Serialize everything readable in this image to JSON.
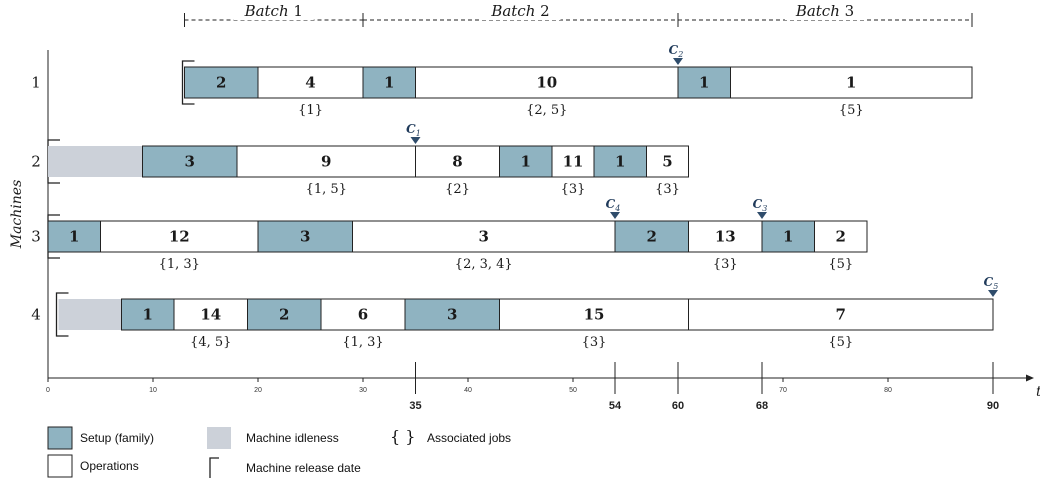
{
  "colors": {
    "setup": "#8fb3c1",
    "idle": "#ccd1d9",
    "op": "#ffffff",
    "stroke": "#222222",
    "marker": "#2f4c6b"
  },
  "batches": [
    {
      "label": "Batch",
      "num": "1",
      "start": 13,
      "end": 30
    },
    {
      "label": "Batch",
      "num": "2",
      "start": 30,
      "end": 60
    },
    {
      "label": "Batch",
      "num": "3",
      "start": 60,
      "end": 88
    }
  ],
  "axis": {
    "ylabel": "Machines",
    "xlabel": "t",
    "ticks": [
      0,
      10,
      20,
      30,
      40,
      50,
      60,
      70,
      80,
      90
    ],
    "minor_labels": [
      "0",
      "10",
      "20",
      "30",
      "40",
      "50",
      "",
      "70",
      "80",
      ""
    ],
    "major_ticks": [
      35,
      54,
      60,
      68,
      90
    ],
    "major_labels": [
      "35",
      "54",
      "60",
      "68",
      "90"
    ]
  },
  "machines": [
    {
      "label": "1",
      "release": 13,
      "blocks": [
        {
          "type": "setup",
          "start": 13,
          "end": 20,
          "text": "2"
        },
        {
          "type": "op",
          "start": 20,
          "end": 30,
          "text": "4"
        },
        {
          "type": "setup",
          "start": 30,
          "end": 35,
          "text": "1"
        },
        {
          "type": "op",
          "start": 35,
          "end": 60,
          "text": "10"
        },
        {
          "type": "setup",
          "start": 60,
          "end": 65,
          "text": "1"
        },
        {
          "type": "op",
          "start": 65,
          "end": 88,
          "text": "1"
        }
      ],
      "jobs": [
        {
          "at": 25,
          "text": "{1}"
        },
        {
          "at": 47.5,
          "text": "{2, 5}"
        },
        {
          "at": 76.5,
          "text": "{5}"
        }
      ]
    },
    {
      "label": "2",
      "release": 0,
      "blocks": [
        {
          "type": "idle",
          "start": 0,
          "end": 9,
          "text": ""
        },
        {
          "type": "setup",
          "start": 9,
          "end": 18,
          "text": "3"
        },
        {
          "type": "op",
          "start": 18,
          "end": 35,
          "text": "9"
        },
        {
          "type": "op",
          "start": 35,
          "end": 43,
          "text": "8"
        },
        {
          "type": "setup",
          "start": 43,
          "end": 48,
          "text": "1"
        },
        {
          "type": "op",
          "start": 48,
          "end": 52,
          "text": "11"
        },
        {
          "type": "setup",
          "start": 52,
          "end": 57,
          "text": "1"
        },
        {
          "type": "op",
          "start": 57,
          "end": 61,
          "text": "5"
        }
      ],
      "jobs": [
        {
          "at": 26.5,
          "text": "{1, 5}"
        },
        {
          "at": 39,
          "text": "{2}"
        },
        {
          "at": 50,
          "text": "{3}"
        },
        {
          "at": 59,
          "text": "{3}"
        }
      ]
    },
    {
      "label": "3",
      "release": 0,
      "blocks": [
        {
          "type": "setup",
          "start": 0,
          "end": 5,
          "text": "1"
        },
        {
          "type": "op",
          "start": 5,
          "end": 20,
          "text": "12"
        },
        {
          "type": "setup",
          "start": 20,
          "end": 29,
          "text": "3"
        },
        {
          "type": "op",
          "start": 29,
          "end": 54,
          "text": "3"
        },
        {
          "type": "setup",
          "start": 54,
          "end": 61,
          "text": "2"
        },
        {
          "type": "op",
          "start": 61,
          "end": 68,
          "text": "13"
        },
        {
          "type": "setup",
          "start": 68,
          "end": 73,
          "text": "1"
        },
        {
          "type": "op",
          "start": 73,
          "end": 78,
          "text": "2"
        }
      ],
      "jobs": [
        {
          "at": 12.5,
          "text": "{1, 3}"
        },
        {
          "at": 41.5,
          "text": "{2, 3, 4}"
        },
        {
          "at": 64.5,
          "text": "{3}"
        },
        {
          "at": 75.5,
          "text": "{5}"
        }
      ]
    },
    {
      "label": "4",
      "release": 1,
      "blocks": [
        {
          "type": "idle",
          "start": 1,
          "end": 7,
          "text": ""
        },
        {
          "type": "setup",
          "start": 7,
          "end": 12,
          "text": "1"
        },
        {
          "type": "op",
          "start": 12,
          "end": 19,
          "text": "14"
        },
        {
          "type": "setup",
          "start": 19,
          "end": 26,
          "text": "2"
        },
        {
          "type": "op",
          "start": 26,
          "end": 34,
          "text": "6"
        },
        {
          "type": "setup",
          "start": 34,
          "end": 43,
          "text": "3"
        },
        {
          "type": "op",
          "start": 43,
          "end": 61,
          "text": "15"
        },
        {
          "type": "op",
          "start": 61,
          "end": 90,
          "text": "7"
        }
      ],
      "jobs": [
        {
          "at": 15.5,
          "text": "{4, 5}"
        },
        {
          "at": 30,
          "text": "{1, 3}"
        },
        {
          "at": 52,
          "text": "{3}"
        },
        {
          "at": 75.5,
          "text": "{5}"
        }
      ]
    }
  ],
  "completions": [
    {
      "label": "C",
      "sub": "2",
      "machine": 0,
      "at": 60
    },
    {
      "label": "C",
      "sub": "1",
      "machine": 1,
      "at": 35
    },
    {
      "label": "C",
      "sub": "4",
      "machine": 2,
      "at": 54
    },
    {
      "label": "C",
      "sub": "3",
      "machine": 2,
      "at": 68
    },
    {
      "label": "C",
      "sub": "5",
      "machine": 3,
      "at": 90
    }
  ],
  "legend": {
    "setup": "Setup (family)",
    "operations": "Operations",
    "idle": "Machine idleness",
    "release": "Machine release date",
    "jobs": "Associated jobs",
    "braces": "{   }"
  }
}
